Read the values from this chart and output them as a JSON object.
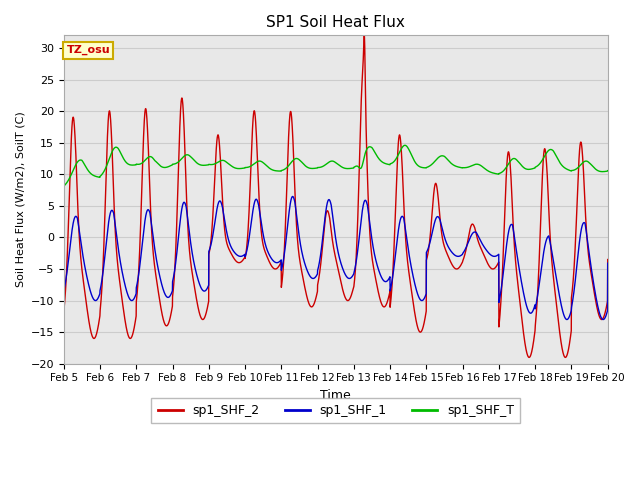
{
  "title": "SP1 Soil Heat Flux",
  "xlabel": "Time",
  "ylabel": "Soil Heat Flux (W/m2), SoilT (C)",
  "ylim": [
    -20,
    32
  ],
  "xlim": [
    0,
    360
  ],
  "background_color": "#e8e8e8",
  "fig_background": "#ffffff",
  "line_colors": {
    "shf2": "#cc0000",
    "shf1": "#0000cc",
    "shft": "#00bb00"
  },
  "legend_labels": [
    "sp1_SHF_2",
    "sp1_SHF_1",
    "sp1_SHF_T"
  ],
  "annotation_text": "TZ_osu",
  "annotation_bg": "#ffffcc",
  "annotation_border": "#ccaa00",
  "annotation_color": "#cc0000",
  "yticks": [
    -20,
    -15,
    -10,
    -5,
    0,
    5,
    10,
    15,
    20,
    25,
    30
  ],
  "xtick_labels": [
    "Feb 5",
    "Feb 6",
    "Feb 7",
    "Feb 8",
    "Feb 9",
    "Feb 10",
    "Feb 11",
    "Feb 12",
    "Feb 13",
    "Feb 14",
    "Feb 15",
    "Feb 16",
    "Feb 17",
    "Feb 18",
    "Feb 19",
    "Feb 20"
  ],
  "xtick_positions": [
    0,
    24,
    48,
    72,
    96,
    120,
    144,
    168,
    192,
    216,
    240,
    264,
    288,
    312,
    336,
    360
  ],
  "grid_color": "#cccccc",
  "linewidth": 1.0
}
